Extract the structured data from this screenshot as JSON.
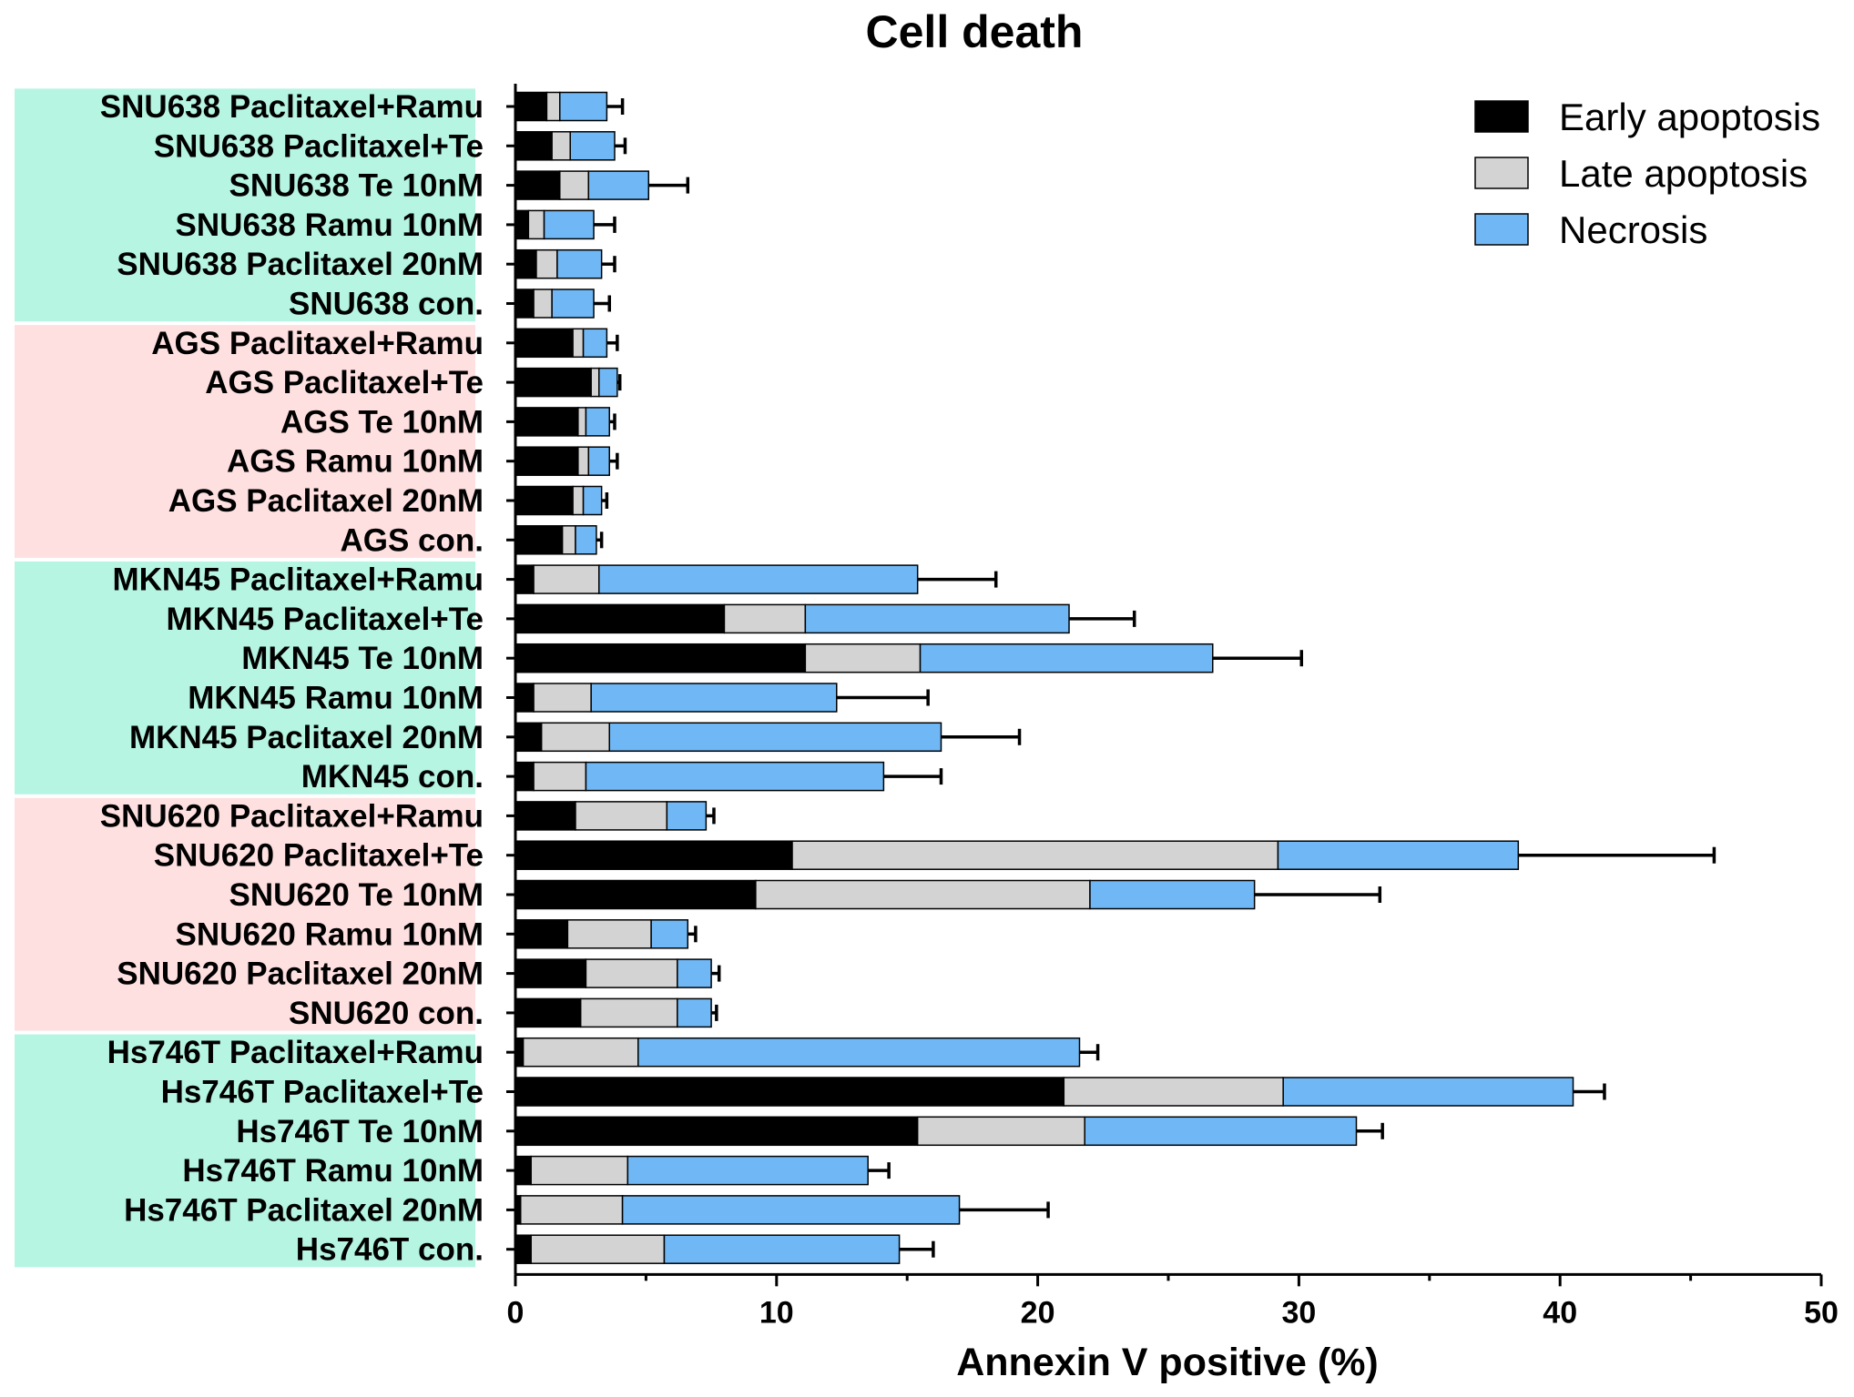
{
  "chart_data": {
    "type": "bar",
    "orientation": "horizontal",
    "stacked": true,
    "title": "Cell death",
    "xlabel": "Annexin V positive (%)",
    "ylabel": "",
    "xlim": [
      0,
      50
    ],
    "x_ticks": [
      0,
      10,
      20,
      30,
      40,
      50
    ],
    "legend_position": "top-right",
    "grid": false,
    "categories": [
      "SNU638 Paclitaxel+Ramu",
      "SNU638 Paclitaxel+Te",
      "SNU638 Te 10nM",
      "SNU638 Ramu 10nM",
      "SNU638 Paclitaxel 20nM",
      "SNU638 con.",
      "AGS Paclitaxel+Ramu",
      "AGS Paclitaxel+Te",
      "AGS Te 10nM",
      "AGS Ramu 10nM",
      "AGS Paclitaxel 20nM",
      "AGS con.",
      "MKN45 Paclitaxel+Ramu",
      "MKN45 Paclitaxel+Te",
      "MKN45 Te 10nM",
      "MKN45 Ramu 10nM",
      "MKN45 Paclitaxel 20nM",
      "MKN45 con.",
      "SNU620 Paclitaxel+Ramu",
      "SNU620 Paclitaxel+Te",
      "SNU620 Te 10nM",
      "SNU620 Ramu 10nM",
      "SNU620 Paclitaxel 20nM",
      "SNU620 con.",
      "Hs746T Paclitaxel+Ramu",
      "Hs746T Paclitaxel+Te",
      "Hs746T Te 10nM",
      "Hs746T Ramu 10nM",
      "Hs746T Paclitaxel 20nM",
      "Hs746T con."
    ],
    "series": [
      {
        "name": "Early apoptosis",
        "color": "#000000",
        "values": [
          1.2,
          1.4,
          1.7,
          0.5,
          0.8,
          0.7,
          2.2,
          2.9,
          2.4,
          2.4,
          2.2,
          1.8,
          0.7,
          8.0,
          11.1,
          0.7,
          1.0,
          0.7,
          2.3,
          10.6,
          9.2,
          2.0,
          2.7,
          2.5,
          0.3,
          21.0,
          15.4,
          0.6,
          0.2,
          0.6
        ]
      },
      {
        "name": "Late apoptosis",
        "color": "#d3d3d3",
        "values": [
          0.5,
          0.7,
          1.1,
          0.6,
          0.8,
          0.7,
          0.4,
          0.3,
          0.3,
          0.4,
          0.4,
          0.5,
          2.5,
          3.1,
          4.4,
          2.2,
          2.6,
          2.0,
          3.5,
          18.6,
          12.8,
          3.2,
          3.5,
          3.7,
          4.4,
          8.4,
          6.4,
          3.7,
          3.9,
          5.1
        ]
      },
      {
        "name": "Necrosis",
        "color": "#70b8f5",
        "values": [
          1.8,
          1.7,
          2.3,
          1.9,
          1.7,
          1.6,
          0.9,
          0.7,
          0.9,
          0.8,
          0.7,
          0.8,
          12.2,
          10.1,
          11.2,
          9.4,
          12.7,
          11.4,
          1.5,
          9.2,
          6.3,
          1.4,
          1.3,
          1.3,
          16.9,
          11.1,
          10.4,
          9.2,
          12.9,
          9.0
        ]
      }
    ],
    "error": [
      0.6,
      0.4,
      1.5,
      0.8,
      0.5,
      0.6,
      0.4,
      0.1,
      0.2,
      0.3,
      0.2,
      0.2,
      3.0,
      2.5,
      3.4,
      3.5,
      3.0,
      2.2,
      0.3,
      7.5,
      4.8,
      0.3,
      0.3,
      0.2,
      0.7,
      1.2,
      1.0,
      0.8,
      3.4,
      1.3
    ],
    "groups": [
      {
        "name": "SNU638",
        "start": 0,
        "end": 5,
        "color": "#b6f5e2"
      },
      {
        "name": "AGS",
        "start": 6,
        "end": 11,
        "color": "#ffe0e0"
      },
      {
        "name": "MKN45",
        "start": 12,
        "end": 17,
        "color": "#b6f5e2"
      },
      {
        "name": "SNU620",
        "start": 18,
        "end": 23,
        "color": "#ffe0e0"
      },
      {
        "name": "Hs746T",
        "start": 24,
        "end": 29,
        "color": "#b6f5e2"
      }
    ]
  }
}
